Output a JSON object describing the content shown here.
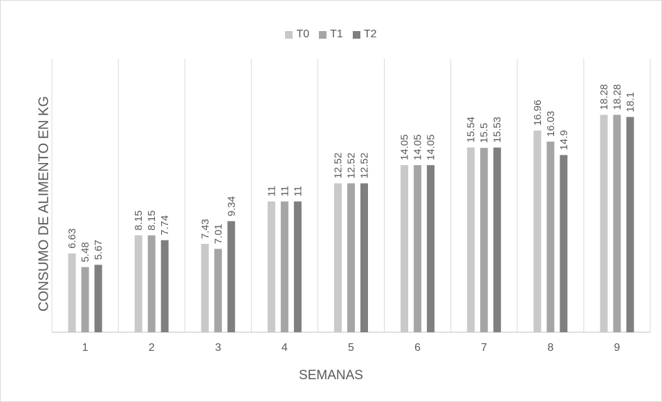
{
  "chart_data": {
    "type": "bar",
    "title": "",
    "xlabel": "SEMANAS",
    "ylabel": "CONSUMO DE ALIMENTO EN KG",
    "categories": [
      "1",
      "2",
      "3",
      "4",
      "5",
      "6",
      "7",
      "8",
      "9"
    ],
    "series": [
      {
        "name": "T0",
        "color": "#c9c9c9",
        "values": [
          6.63,
          8.15,
          7.43,
          11,
          12.52,
          14.05,
          15.54,
          16.96,
          18.28
        ],
        "labels": [
          "6.63",
          "8.15",
          "7.43",
          "11",
          "12.52",
          "14.05",
          "15.54",
          "16.96",
          "18.28"
        ]
      },
      {
        "name": "T1",
        "color": "#a5a5a5",
        "values": [
          5.48,
          8.15,
          7.01,
          11,
          12.52,
          14.05,
          15.5,
          16.03,
          18.28
        ],
        "labels": [
          "5.48",
          "8.15",
          "7.01",
          "11",
          "12.52",
          "14.05",
          "15.5",
          "16.03",
          "18.28"
        ]
      },
      {
        "name": "T2",
        "color": "#7f7f7f",
        "values": [
          5.67,
          7.74,
          9.34,
          11,
          12.52,
          14.05,
          15.53,
          14.9,
          18.1
        ],
        "labels": [
          "5.67",
          "7.74",
          "9.34",
          "11",
          "12.52",
          "14.05",
          "15.53",
          "14.9",
          "18.1"
        ]
      }
    ],
    "ylim": [
      0,
      23
    ],
    "grid": "vertical",
    "legend": "top-center",
    "data_labels": "vertical-above-bars"
  }
}
